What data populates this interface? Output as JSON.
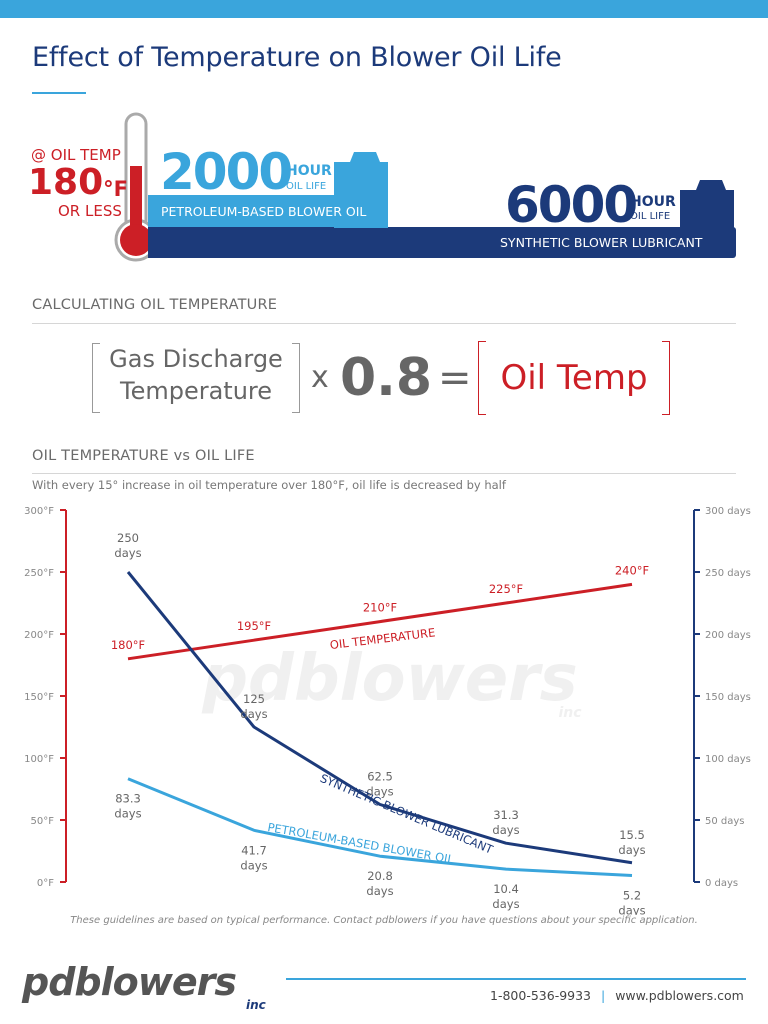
{
  "header": {
    "title": "Effect of Temperature on Blower Oil Life"
  },
  "hero": {
    "oil_temp_label": "@ OIL TEMP",
    "temp_value": "180",
    "temp_unit": "°F",
    "or_less": "OR LESS",
    "petroleum": {
      "hours": "2000",
      "hour_word": "HOUR",
      "oil_life": "OIL LIFE",
      "name": "PETROLEUM-BASED BLOWER OIL"
    },
    "synthetic": {
      "hours": "6000",
      "hour_word": "HOUR",
      "oil_life": "OIL LIFE",
      "name": "SYNTHETIC BLOWER LUBRICANT"
    },
    "colors": {
      "red": "#cc1f26",
      "light_blue": "#3aa5dc",
      "navy": "#1c3a7a"
    }
  },
  "calc": {
    "section_title": "CALCULATING OIL TEMPERATURE",
    "term1_line1": "Gas Discharge",
    "term1_line2": "Temperature",
    "times": "x",
    "factor": "0.8",
    "equals": "=",
    "result": "Oil Temp"
  },
  "chart_section": {
    "title": "OIL TEMPERATURE vs OIL LIFE",
    "subtitle": "With every 15° increase in oil temperature over 180°F, oil life is decreased by half",
    "footnote": "These guidelines are based on typical performance. Contact pdblowers if you have questions about your specific application."
  },
  "chart_data": {
    "type": "line",
    "x": [
      180,
      195,
      210,
      225,
      240
    ],
    "left_axis": {
      "unit": "°F",
      "min": 0,
      "max": 300,
      "ticks": [
        "0°F",
        "50°F",
        "100°F",
        "150°F",
        "200°F",
        "250°F",
        "300°F"
      ]
    },
    "right_axis": {
      "unit": "days",
      "min": 0,
      "max": 300,
      "ticks": [
        "0 days",
        "50 days",
        "100 days",
        "150 days",
        "200 days",
        "250 days",
        "300 days"
      ]
    },
    "series": [
      {
        "name": "OIL TEMPERATURE",
        "axis": "left",
        "color": "#cc1f26",
        "values": [
          180,
          195,
          210,
          225,
          240
        ],
        "labels": [
          "180°F",
          "195°F",
          "210°F",
          "225°F",
          "240°F"
        ]
      },
      {
        "name": "SYNTHETIC BLOWER LUBRICANT",
        "axis": "right",
        "color": "#1c3a7a",
        "values": [
          250,
          125,
          62.5,
          31.3,
          15.5
        ],
        "labels": [
          "250",
          "125",
          "62.5",
          "31.3",
          "15.5"
        ]
      },
      {
        "name": "PETROLEUM-BASED BLOWER OIL",
        "axis": "right",
        "color": "#3aa5dc",
        "values": [
          83.3,
          41.7,
          20.8,
          10.4,
          5.2
        ],
        "labels": [
          "83.3",
          "41.7",
          "20.8",
          "10.4",
          "5.2"
        ]
      }
    ],
    "day_word": "days",
    "watermark": "pdblowers",
    "watermark_sub": "inc"
  },
  "footer": {
    "logo": "pdblowers",
    "logo_sub": "inc",
    "phone": "1-800-536-9933",
    "separator": "|",
    "website": "www.pdblowers.com"
  }
}
